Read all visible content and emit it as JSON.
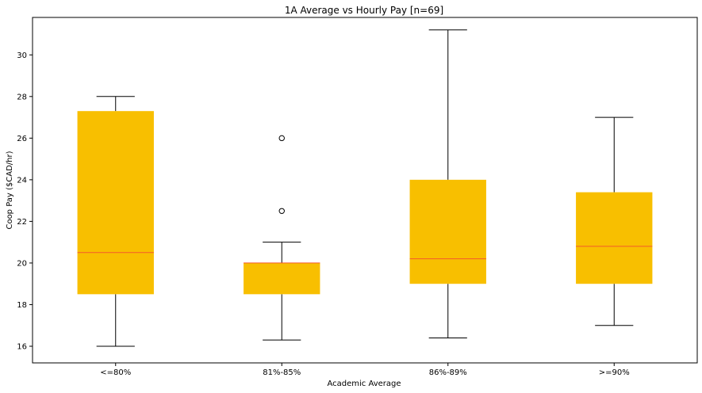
{
  "chart_data": {
    "type": "box",
    "title": "1A Average vs Hourly Pay [n=69]",
    "xlabel": "Academic Average",
    "ylabel": "Coop Pay ($CAD/hr)",
    "ylim": [
      15.2,
      31.8
    ],
    "yticks": [
      16,
      18,
      20,
      22,
      24,
      26,
      28,
      30
    ],
    "grid": false,
    "colors": {
      "box_fill": "#f8bf00",
      "median": "#f55a2a",
      "whisker": "#000000"
    },
    "categories": [
      "<=80%",
      "81%-85%",
      "86%-89%",
      ">=90%"
    ],
    "boxes": [
      {
        "whislo": 16.0,
        "q1": 18.5,
        "med": 20.5,
        "q3": 27.3,
        "whishi": 28.0,
        "fliers": []
      },
      {
        "whislo": 16.3,
        "q1": 18.5,
        "med": 20.0,
        "q3": 20.0,
        "whishi": 21.0,
        "fliers": [
          22.5,
          26.0
        ]
      },
      {
        "whislo": 16.4,
        "q1": 19.0,
        "med": 20.2,
        "q3": 24.0,
        "whishi": 31.2,
        "fliers": []
      },
      {
        "whislo": 17.0,
        "q1": 19.0,
        "med": 20.8,
        "q3": 23.4,
        "whishi": 27.0,
        "fliers": []
      }
    ]
  }
}
